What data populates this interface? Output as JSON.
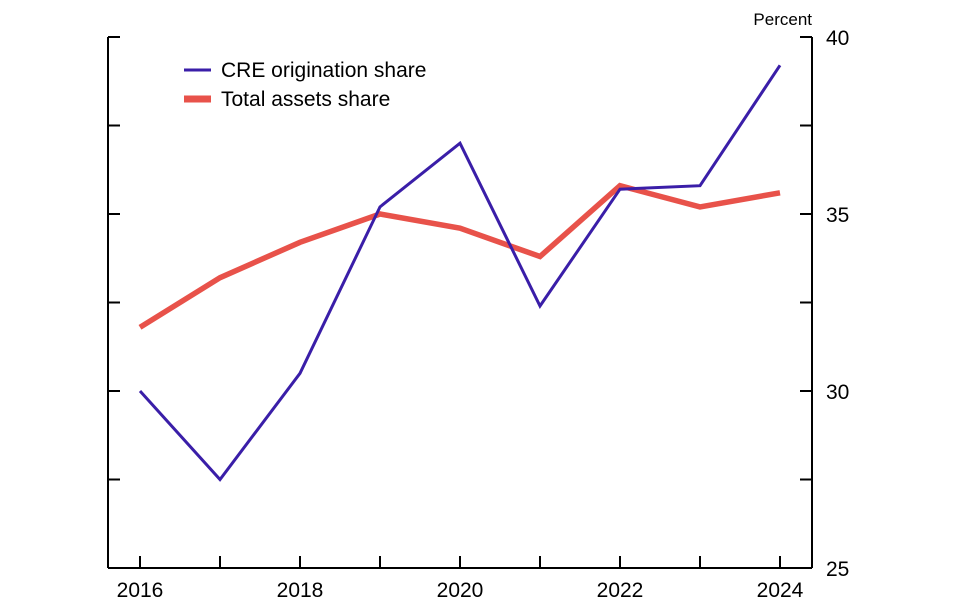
{
  "chart_data": {
    "type": "line",
    "title": "",
    "xlabel": "",
    "ylabel": "",
    "unit_label": "Percent",
    "x": [
      2016,
      2017,
      2018,
      2019,
      2020,
      2021,
      2022,
      2023,
      2024
    ],
    "x_tick_labels": [
      "2016",
      "2018",
      "2020",
      "2022",
      "2024"
    ],
    "ylim": [
      25,
      40
    ],
    "y_tick_labels": [
      "25",
      "30",
      "35",
      "40"
    ],
    "y_axis_side": "right",
    "legend_position": "top-left",
    "grid": false,
    "series": [
      {
        "name": "CRE origination share",
        "color": "#3a1ea8",
        "values": [
          30.0,
          27.5,
          30.5,
          35.2,
          37.0,
          32.4,
          35.7,
          35.8,
          39.2
        ]
      },
      {
        "name": "Total assets share",
        "color": "#e8524a",
        "values": [
          31.8,
          33.2,
          34.2,
          35.0,
          34.6,
          33.8,
          35.8,
          35.2,
          35.6
        ]
      }
    ]
  }
}
